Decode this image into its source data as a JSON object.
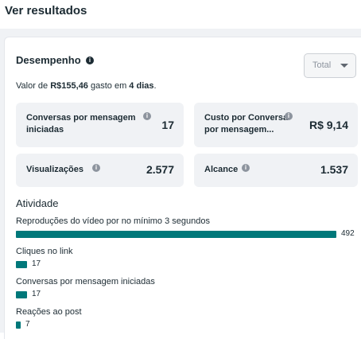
{
  "header": {
    "title": "Ver resultados"
  },
  "performance": {
    "title": "Desempenho",
    "breakdown": {
      "selected": "Total"
    },
    "spend": {
      "prefix": "Valor de ",
      "amount": "R$155,46",
      "middle": " gasto em ",
      "days": "4 dias",
      "suffix": "."
    },
    "metrics": [
      {
        "label_line1": "Conversas por mensagem",
        "label_line2": "iniciadas",
        "value": "17"
      },
      {
        "label_line1": "Custo por Conversa",
        "label_line2": "por mensagem...",
        "value": "R$ 9,14"
      },
      {
        "label_line1": "Visualizações",
        "label_line2": "",
        "value": "2.577"
      },
      {
        "label_line1": "Alcance",
        "label_line2": "",
        "value": "1.537"
      }
    ]
  },
  "activity": {
    "title": "Atividade",
    "max": 492,
    "rows": [
      {
        "label": "Reproduções do vídeo por no mínimo 3 segundos",
        "value": 492,
        "display": "492"
      },
      {
        "label": "Cliques no link",
        "value": 17,
        "display": "17"
      },
      {
        "label": "Conversas por mensagem iniciadas",
        "value": 17,
        "display": "17"
      },
      {
        "label": "Reações ao post",
        "value": 7,
        "display": "7"
      }
    ]
  },
  "colors": {
    "bar": "#00787a",
    "tile_background": "#f0f2f5",
    "text": "#1c2b33"
  },
  "icons": [
    "info-icon",
    "chevron-down-icon"
  ]
}
